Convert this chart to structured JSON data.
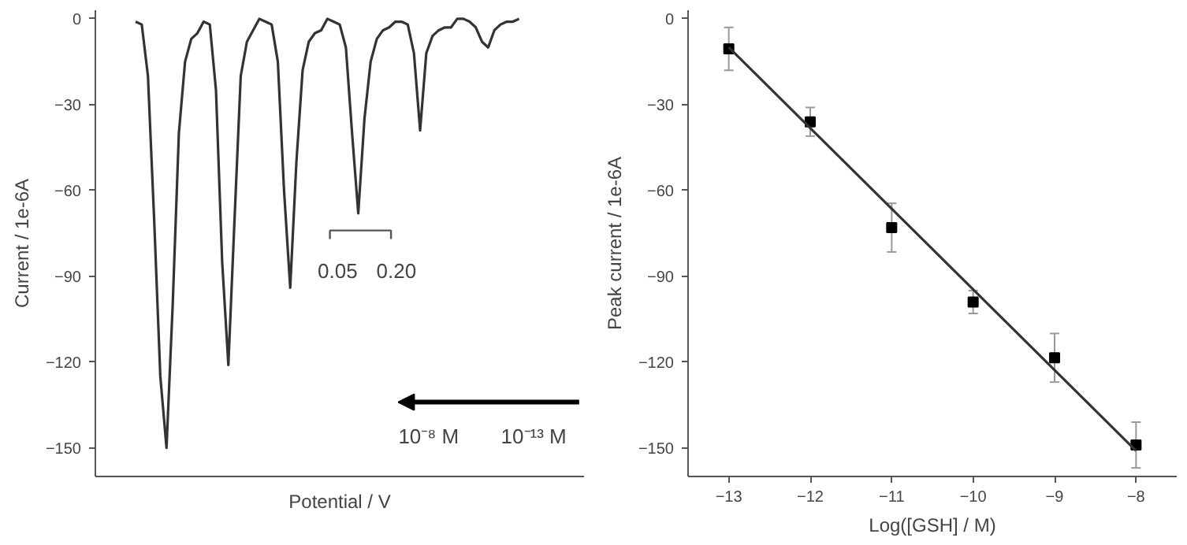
{
  "chart_data": [
    {
      "type": "line",
      "xlabel": "Potential / V",
      "ylabel": "Current / 1e-6A",
      "ylim": [
        -160,
        3
      ],
      "yticks": [
        0,
        -30,
        -60,
        -90,
        -120,
        -150
      ],
      "grid": false,
      "tick_labels": "y",
      "line_style": "solid",
      "categories": [
        null,
        null,
        null,
        null,
        null,
        null,
        null,
        null,
        null,
        null,
        null,
        null,
        null,
        null,
        null,
        null,
        null,
        null,
        null,
        null,
        null,
        null,
        null,
        null,
        null,
        null,
        null,
        null,
        null,
        null,
        null,
        null,
        null,
        null,
        null,
        null,
        null,
        null,
        null,
        null,
        null,
        null,
        null,
        null,
        null,
        null,
        null,
        null,
        null,
        null,
        null,
        null,
        null,
        null,
        null,
        null,
        null,
        null,
        null,
        null,
        null,
        null,
        null
      ],
      "series": [
        {
          "color": "#333333",
          "values": [
            -1,
            -2,
            -20,
            -70,
            -125,
            -150,
            -100,
            -40,
            -15,
            -7,
            -5,
            -1,
            -2,
            -25,
            -85,
            -121,
            -70,
            -20,
            -8,
            -4,
            0,
            -1,
            -2,
            -15,
            -60,
            -94,
            -50,
            -18,
            -8,
            -5,
            -4,
            0,
            -1,
            -2,
            -10,
            -40,
            -68,
            -35,
            -15,
            -7,
            -4,
            -3,
            -1,
            -1,
            -2,
            -12,
            -39,
            -12,
            -6,
            -4,
            -3,
            -3,
            0,
            0,
            -1,
            -3,
            -8,
            -10,
            -4,
            -2,
            -1,
            -1,
            0
          ]
        }
      ],
      "annotations": [
        "0.05",
        "0.20",
        "10⁻⁸ M",
        "10⁻¹³ M"
      ]
    },
    {
      "type": "scatter",
      "xlabel": "Log([GSH] / M)",
      "ylabel": "Peak current / 1e-6A",
      "xlim": [
        -13.5,
        -7.5
      ],
      "xticks": [
        -13,
        -12,
        -11,
        -10,
        -9,
        -8
      ],
      "ylim": [
        -160,
        3
      ],
      "yticks": [
        0,
        -30,
        -60,
        -90,
        -120,
        -150
      ],
      "grid": false,
      "x": [
        -13,
        -12,
        -11,
        -10,
        -9,
        -8
      ],
      "series": [
        {
          "color": "#000000",
          "marker": "square",
          "values": [
            -10.5,
            -36,
            -73,
            -99,
            -118.5,
            -149
          ],
          "errors": [
            7.5,
            5,
            8.5,
            4,
            8.5,
            8
          ]
        },
        {
          "type": "line",
          "color": "#333333",
          "x": [
            -13,
            -8
          ],
          "values": [
            -10,
            -151
          ]
        }
      ]
    }
  ]
}
